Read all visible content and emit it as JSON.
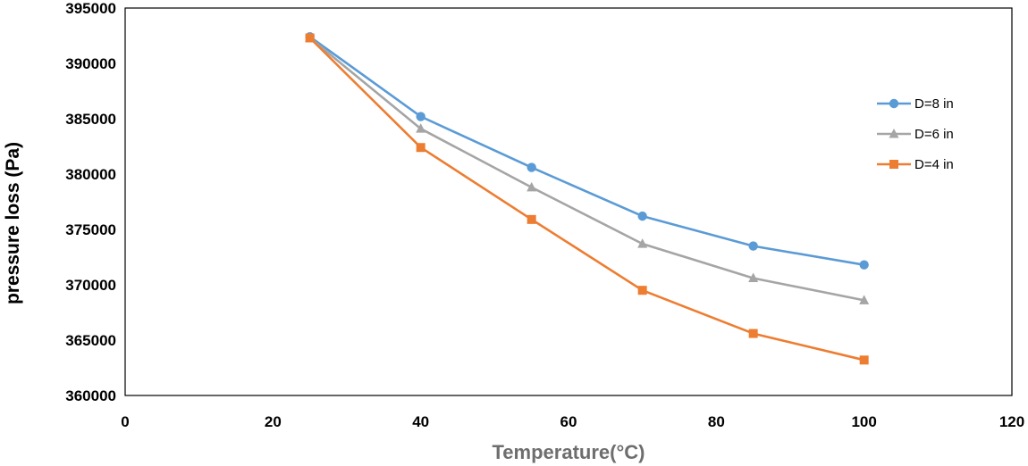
{
  "chart_data": {
    "type": "line",
    "title": "",
    "xlabel": "Temperature(°C)",
    "ylabel": "pressure loss (Pa)",
    "xlim": [
      0,
      120
    ],
    "ylim": [
      360000,
      395000
    ],
    "xticks": [
      0,
      20,
      40,
      60,
      80,
      100,
      120
    ],
    "yticks": [
      360000,
      365000,
      370000,
      375000,
      380000,
      385000,
      390000,
      395000
    ],
    "grid": false,
    "legend_position": "right",
    "x": [
      25,
      40,
      55,
      70,
      85,
      100
    ],
    "series": [
      {
        "name": "D=8 in",
        "color": "#5b9bd5",
        "marker": "circle",
        "values": [
          392400,
          385200,
          380600,
          376200,
          373500,
          371800
        ]
      },
      {
        "name": "D=6 in",
        "color": "#a5a5a5",
        "marker": "triangle",
        "values": [
          392300,
          384100,
          378800,
          373700,
          370600,
          368600
        ]
      },
      {
        "name": "D=4 in",
        "color": "#ed7d31",
        "marker": "square",
        "values": [
          392300,
          382400,
          375900,
          369500,
          365600,
          363200
        ]
      }
    ]
  }
}
